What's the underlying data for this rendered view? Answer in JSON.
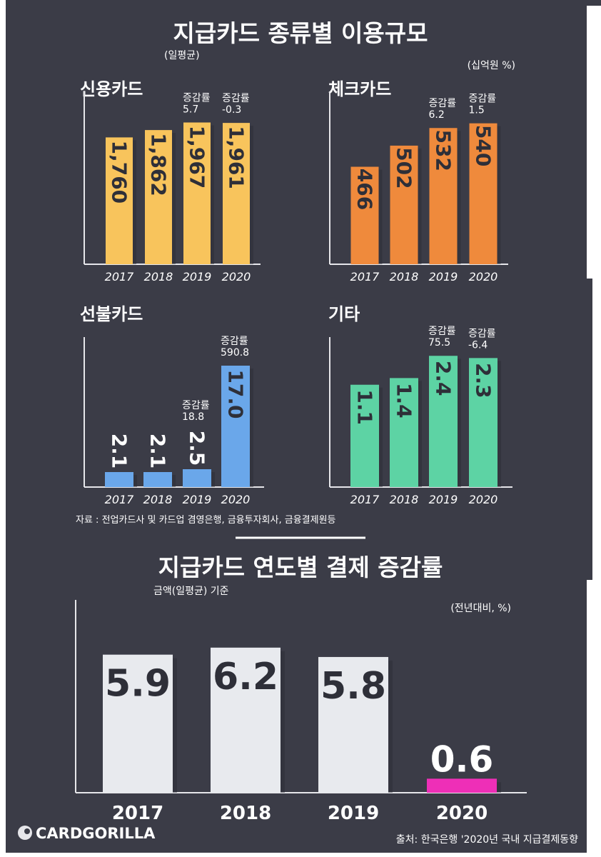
{
  "colors": {
    "background": "#3b3c47",
    "credit": "#f8c45c",
    "check": "#ef8a3c",
    "prepaid": "#6aa7ea",
    "other": "#5dd3a4",
    "growth_bar": "#e8eaee",
    "highlight": "#ee2fb7",
    "axis": "#e6e6ea",
    "value_text": "#2e2f38"
  },
  "top": {
    "title": "지급카드 종류별 이용규모",
    "subtitle": "(일평균)",
    "unit": "(십억원 %)",
    "source": "자료 : 전업카드사 및 카드업 겸영은행, 금융투자회사, 금융결제원등"
  },
  "bottom": {
    "title": "지급카드 연도별 결제 증감률",
    "subtitle": "금액(일평균) 기준",
    "unit": "(전년대비, %)",
    "logo": "CARDGORILLA",
    "source": "출처: 한국은행 '2020년 국내 지급결제동향"
  },
  "chart_data": [
    {
      "type": "bar",
      "title": "신용카드",
      "categories": [
        "2017",
        "2018",
        "2019",
        "2020"
      ],
      "values": [
        1760,
        1862,
        1967,
        1961
      ],
      "value_labels": [
        "1,760",
        "1,862",
        "1,967",
        "1,961"
      ],
      "annotations": [
        null,
        null,
        {
          "label": "증감률",
          "value": "5.7"
        },
        {
          "label": "증감률",
          "value": "-0.3"
        }
      ],
      "ylim": [
        0,
        2200
      ],
      "color": "#f8c45c"
    },
    {
      "type": "bar",
      "title": "체크카드",
      "categories": [
        "2017",
        "2018",
        "2019",
        "2020"
      ],
      "values": [
        466,
        502,
        532,
        540
      ],
      "value_labels": [
        "466",
        "502",
        "532",
        "540"
      ],
      "annotations": [
        null,
        null,
        {
          "label": "증감률",
          "value": "6.2"
        },
        {
          "label": "증감률",
          "value": "1.5"
        }
      ],
      "ylim": [
        300,
        570
      ],
      "color": "#ef8a3c"
    },
    {
      "type": "bar",
      "title": "선불카드",
      "categories": [
        "2017",
        "2018",
        "2019",
        "2020"
      ],
      "values": [
        2.1,
        2.1,
        2.5,
        17.0
      ],
      "value_labels": [
        "2.1",
        "2.1",
        "2.5",
        "17.0"
      ],
      "annotations": [
        null,
        null,
        {
          "label": "증감률",
          "value": "18.8"
        },
        {
          "label": "증감률",
          "value": "590.8"
        }
      ],
      "ylim": [
        0,
        19
      ],
      "color": "#6aa7ea"
    },
    {
      "type": "bar",
      "title": "기타",
      "categories": [
        "2017",
        "2018",
        "2019",
        "2020"
      ],
      "values": [
        1.1,
        1.4,
        2.4,
        2.3
      ],
      "value_labels": [
        "1.1",
        "1.4",
        "2.4",
        "2.3"
      ],
      "annotations": [
        null,
        null,
        {
          "label": "증감률",
          "value": "75.5"
        },
        {
          "label": "증감률",
          "value": "-6.4"
        }
      ],
      "ylim": [
        -3.5,
        2.6
      ],
      "color": "#5dd3a4"
    },
    {
      "type": "bar",
      "title": "지급카드 연도별 결제 증감률",
      "categories": [
        "2017",
        "2018",
        "2019",
        "2020"
      ],
      "values": [
        5.9,
        6.2,
        5.8,
        0.6
      ],
      "value_labels": [
        "5.9",
        "6.2",
        "5.8",
        "0.6"
      ],
      "ylim": [
        0,
        6.5
      ],
      "ylabel": "%"
    }
  ]
}
